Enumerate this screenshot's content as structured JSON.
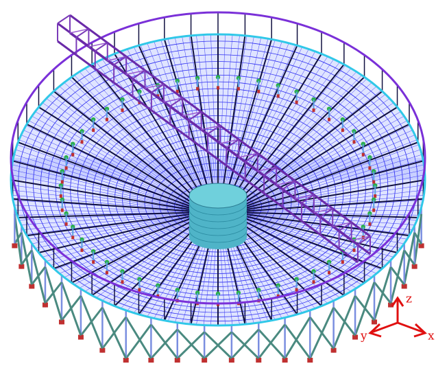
{
  "axis_triad": {
    "z": "z",
    "y": "y",
    "x": "x"
  }
}
